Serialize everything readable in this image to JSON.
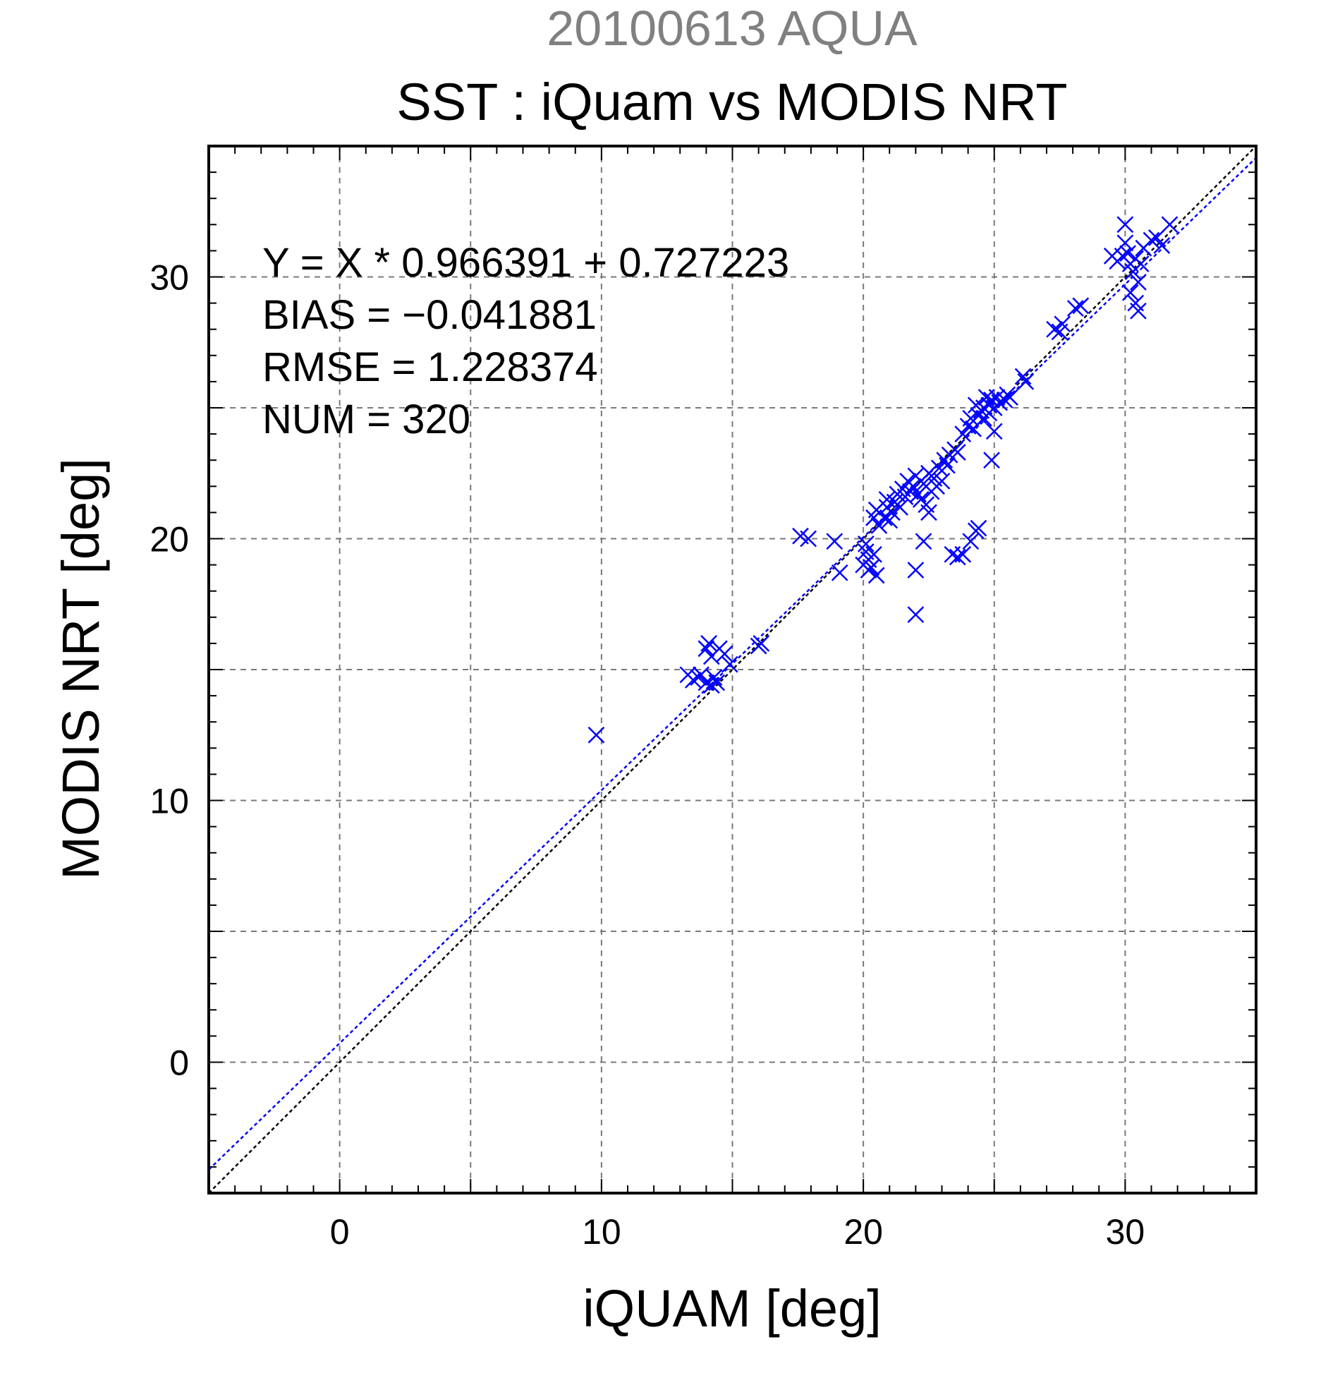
{
  "chart_data": {
    "type": "scatter",
    "suptitle": "20100613 AQUA",
    "title": "SST : iQuam vs MODIS NRT",
    "xlabel": "iQUAM [deg]",
    "ylabel": "MODIS NRT [deg]",
    "xlim": [
      -5,
      35
    ],
    "ylim": [
      -5,
      35
    ],
    "xticks": [
      0,
      10,
      20,
      30
    ],
    "yticks": [
      0,
      10,
      20,
      30
    ],
    "grid": true,
    "grid_step": 5,
    "stats": [
      "Y = X * 0.966391 + 0.727223",
      "BIAS = −0.041881",
      "RMSE = 1.228374",
      "NUM = 320"
    ],
    "reference_lines": [
      {
        "kind": "identity",
        "slope": 1,
        "intercept": 0,
        "color": "#000000"
      },
      {
        "kind": "regression",
        "slope": 0.966391,
        "intercept": 0.727223,
        "color": "#0000ff"
      }
    ],
    "series": [
      {
        "marker": "x",
        "color": "#0000ff",
        "points": [
          [
            9.8,
            12.5
          ],
          [
            13.3,
            14.8
          ],
          [
            13.5,
            14.6
          ],
          [
            13.7,
            14.7
          ],
          [
            13.8,
            14.8
          ],
          [
            14.0,
            14.5
          ],
          [
            14.0,
            15.8
          ],
          [
            14.1,
            16.0
          ],
          [
            14.2,
            14.4
          ],
          [
            14.2,
            15.5
          ],
          [
            14.3,
            14.7
          ],
          [
            14.4,
            14.5
          ],
          [
            14.5,
            15.8
          ],
          [
            14.7,
            15.6
          ],
          [
            14.9,
            15.2
          ],
          [
            16.0,
            15.9
          ],
          [
            16.1,
            16.0
          ],
          [
            17.6,
            20.1
          ],
          [
            17.9,
            20.0
          ],
          [
            18.9,
            19.9
          ],
          [
            19.1,
            18.7
          ],
          [
            20.0,
            19.0
          ],
          [
            20.1,
            19.5
          ],
          [
            20.2,
            19.2
          ],
          [
            20.2,
            18.8
          ],
          [
            20.3,
            18.9
          ],
          [
            20.4,
            19.4
          ],
          [
            20.5,
            18.6
          ],
          [
            20.1,
            19.8
          ],
          [
            20.4,
            20.8
          ],
          [
            20.5,
            21.1
          ],
          [
            20.6,
            20.5
          ],
          [
            20.8,
            20.8
          ],
          [
            20.9,
            21.2
          ],
          [
            20.9,
            21.5
          ],
          [
            21.0,
            20.7
          ],
          [
            21.1,
            21.0
          ],
          [
            21.2,
            21.4
          ],
          [
            21.3,
            21.7
          ],
          [
            21.4,
            21.2
          ],
          [
            21.5,
            21.9
          ],
          [
            21.6,
            21.6
          ],
          [
            21.7,
            22.2
          ],
          [
            21.8,
            21.8
          ],
          [
            21.9,
            22.0
          ],
          [
            22.0,
            22.4
          ],
          [
            22.1,
            21.7
          ],
          [
            22.2,
            21.5
          ],
          [
            22.3,
            22.1
          ],
          [
            22.4,
            21.3
          ],
          [
            22.5,
            22.5
          ],
          [
            22.6,
            21.8
          ],
          [
            22.7,
            22.3
          ],
          [
            22.8,
            22.0
          ],
          [
            22.9,
            22.7
          ],
          [
            23.0,
            22.2
          ],
          [
            23.1,
            23.0
          ],
          [
            23.2,
            22.8
          ],
          [
            23.3,
            23.2
          ],
          [
            23.5,
            23.4
          ],
          [
            23.6,
            23.3
          ],
          [
            22.0,
            17.1
          ],
          [
            22.0,
            18.8
          ],
          [
            22.3,
            19.9
          ],
          [
            22.5,
            21.0
          ],
          [
            23.4,
            19.4
          ],
          [
            23.6,
            19.3
          ],
          [
            23.8,
            19.4
          ],
          [
            24.1,
            19.9
          ],
          [
            24.3,
            20.3
          ],
          [
            24.4,
            20.4
          ],
          [
            23.8,
            24.0
          ],
          [
            24.0,
            24.3
          ],
          [
            24.1,
            24.6
          ],
          [
            24.2,
            24.2
          ],
          [
            24.3,
            25.1
          ],
          [
            24.4,
            24.7
          ],
          [
            24.5,
            24.9
          ],
          [
            24.6,
            25.0
          ],
          [
            24.7,
            25.4
          ],
          [
            24.8,
            25.1
          ],
          [
            24.9,
            25.3
          ],
          [
            25.0,
            25.0
          ],
          [
            25.1,
            25.4
          ],
          [
            25.2,
            25.2
          ],
          [
            25.4,
            25.3
          ],
          [
            25.5,
            25.5
          ],
          [
            24.9,
            23.0
          ],
          [
            25.0,
            24.1
          ],
          [
            24.6,
            24.6
          ],
          [
            24.8,
            24.8
          ],
          [
            25.6,
            25.4
          ],
          [
            26.1,
            26.2
          ],
          [
            26.2,
            26.0
          ],
          [
            27.3,
            28.0
          ],
          [
            27.5,
            27.9
          ],
          [
            27.6,
            28.2
          ],
          [
            28.1,
            28.8
          ],
          [
            28.3,
            28.9
          ],
          [
            29.5,
            30.8
          ],
          [
            29.7,
            30.6
          ],
          [
            29.9,
            30.8
          ],
          [
            30.0,
            31.3
          ],
          [
            30.0,
            32.0
          ],
          [
            30.1,
            30.9
          ],
          [
            30.2,
            30.5
          ],
          [
            30.2,
            29.4
          ],
          [
            30.3,
            30.2
          ],
          [
            30.4,
            30.7
          ],
          [
            30.4,
            29.0
          ],
          [
            30.5,
            28.7
          ],
          [
            30.5,
            29.8
          ],
          [
            30.6,
            30.5
          ],
          [
            30.7,
            31.1
          ],
          [
            31.0,
            31.4
          ],
          [
            31.2,
            31.5
          ],
          [
            31.4,
            31.2
          ],
          [
            31.7,
            32.0
          ]
        ]
      }
    ]
  }
}
